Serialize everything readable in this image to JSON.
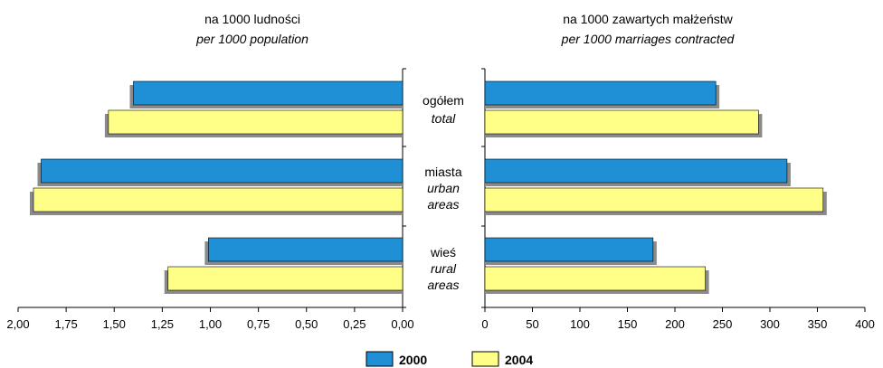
{
  "chart_data": [
    {
      "type": "bar",
      "orientation": "horizontal",
      "direction": "right-to-left",
      "title": "na 1000 ludności",
      "subtitle": "per 1000 population",
      "categories": [
        {
          "main": "ogółem",
          "sub": "total"
        },
        {
          "main": "miasta",
          "sub": "urban areas"
        },
        {
          "main": "wieś",
          "sub": "rural areas"
        }
      ],
      "series": [
        {
          "name": "2000",
          "values": [
            1.4,
            1.88,
            1.01
          ]
        },
        {
          "name": "2004",
          "values": [
            1.53,
            1.92,
            1.22
          ]
        }
      ],
      "xlim": [
        0,
        2.0
      ],
      "xticks": [
        "2,00",
        "1,75",
        "1,50",
        "1,25",
        "1,00",
        "0,75",
        "0,50",
        "0,25",
        "0,00"
      ],
      "xtick_values": [
        2.0,
        1.75,
        1.5,
        1.25,
        1.0,
        0.75,
        0.5,
        0.25,
        0.0
      ],
      "grid": false
    },
    {
      "type": "bar",
      "orientation": "horizontal",
      "direction": "left-to-right",
      "title": "na 1000 zawartych małżeństw",
      "subtitle": "per 1000 marriages contracted",
      "series": [
        {
          "name": "2000",
          "values": [
            243,
            318,
            177
          ]
        },
        {
          "name": "2004",
          "values": [
            288,
            356,
            232
          ]
        }
      ],
      "xlim": [
        0,
        400
      ],
      "xticks": [
        "0",
        "50",
        "100",
        "150",
        "200",
        "250",
        "300",
        "350",
        "400"
      ],
      "xtick_values": [
        0,
        50,
        100,
        150,
        200,
        250,
        300,
        350,
        400
      ],
      "grid": false
    }
  ],
  "legend": {
    "items": [
      {
        "label": "2000",
        "color": "#1f8fd6"
      },
      {
        "label": "2004",
        "color": "#ffff88"
      }
    ],
    "placement": "bottom-center"
  },
  "colors": {
    "series_2000": "#1f8fd6",
    "series_2004": "#ffff88",
    "shadow": "#8a8a8a"
  }
}
